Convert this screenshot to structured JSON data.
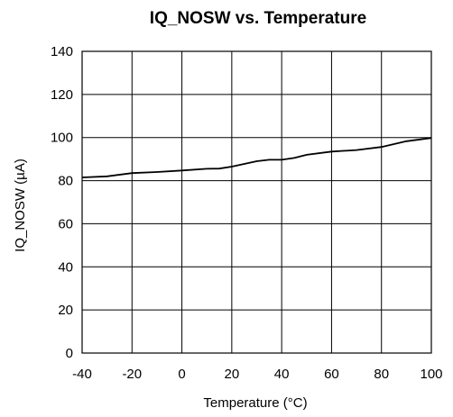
{
  "chart_data": {
    "type": "line",
    "title": "IQ_NOSW vs. Temperature",
    "xlabel": "Temperature (°C)",
    "ylabel": "IQ_NOSW (µA)",
    "xlim": [
      -40,
      100
    ],
    "ylim": [
      0,
      140
    ],
    "xticks": [
      -40,
      -20,
      0,
      20,
      40,
      60,
      80,
      100
    ],
    "yticks": [
      0,
      20,
      40,
      60,
      80,
      100,
      120,
      140
    ],
    "grid": true,
    "legend": "none",
    "series": [
      {
        "color": "#000000",
        "x": [
          -40,
          -30,
          -20,
          -10,
          0,
          10,
          15,
          20,
          30,
          35,
          40,
          45,
          50,
          60,
          70,
          80,
          90,
          100
        ],
        "y": [
          81.5,
          82,
          83.5,
          84,
          84.7,
          85.5,
          85.6,
          86.5,
          89,
          89.7,
          89.7,
          90.5,
          92,
          93.5,
          94.2,
          95.6,
          98.3,
          99.8
        ]
      }
    ]
  }
}
